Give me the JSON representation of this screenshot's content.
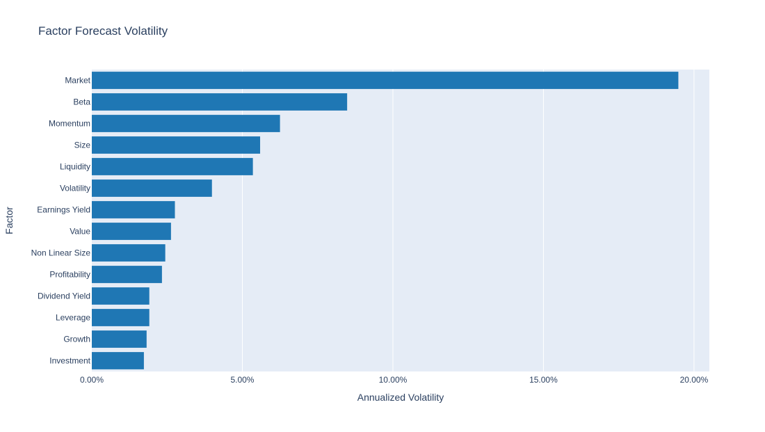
{
  "chart_data": {
    "type": "bar",
    "orientation": "horizontal",
    "title": "Factor Forecast Volatility",
    "xlabel": "Annualized Volatility",
    "ylabel": "Factor",
    "xlim": [
      0,
      0.2051
    ],
    "x_ticks": [
      0,
      0.05,
      0.1,
      0.15,
      0.2
    ],
    "x_tick_labels": [
      "0.00%",
      "5.00%",
      "10.00%",
      "15.00%",
      "20.00%"
    ],
    "grid": true,
    "legend": "none",
    "categories": [
      "Market",
      "Beta",
      "Momentum",
      "Size",
      "Liquidity",
      "Volatility",
      "Earnings Yield",
      "Value",
      "Non Linear Size",
      "Profitability",
      "Dividend Yield",
      "Leverage",
      "Growth",
      "Investment"
    ],
    "values": [
      0.1948,
      0.0848,
      0.0625,
      0.0559,
      0.0535,
      0.0399,
      0.0276,
      0.0263,
      0.0244,
      0.0233,
      0.0191,
      0.0191,
      0.0182,
      0.0173
    ],
    "colors": {
      "bar": "#1f77b4",
      "plot_bg": "#e5ecf6",
      "grid": "#ffffff",
      "text": "#2a3f5f"
    }
  }
}
